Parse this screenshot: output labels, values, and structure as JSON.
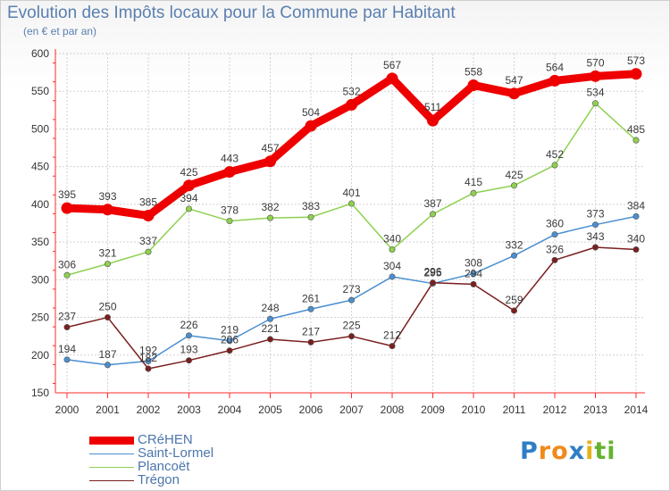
{
  "title": "Evolution des Impôts locaux pour la Commune par Habitant",
  "subtitle": "(en € et par an)",
  "logo": {
    "letters": [
      "P",
      "r",
      "o",
      "x",
      "i",
      "t",
      "i"
    ]
  },
  "colors": {
    "axis": "#ff2a2a",
    "grid": "#d2d2d2",
    "logo": [
      "#2f7ec5",
      "#f08a1c",
      "#f08a1c",
      "#2f7ec5",
      "#e6b21a",
      "#65b230",
      "#65b230"
    ]
  },
  "chart_data": {
    "type": "line",
    "title": "Evolution des Impôts locaux pour la Commune par Habitant",
    "subtitle": "(en € et par an)",
    "x": [
      2000,
      2001,
      2002,
      2003,
      2004,
      2005,
      2006,
      2007,
      2008,
      2009,
      2010,
      2011,
      2012,
      2013,
      2014
    ],
    "ylim": [
      150,
      600
    ],
    "yticks": [
      150,
      200,
      250,
      300,
      350,
      400,
      450,
      500,
      550,
      600
    ],
    "grid": true,
    "legend": "bottom-left",
    "series": [
      {
        "name": "CRéHEN",
        "color": "#ee0000",
        "emphasis": true,
        "values": [
          395,
          393,
          385,
          425,
          443,
          457,
          504,
          532,
          567,
          511,
          558,
          547,
          564,
          570,
          573
        ]
      },
      {
        "name": "Saint-Lormel",
        "color": "#4a8fd0",
        "emphasis": false,
        "values": [
          194,
          187,
          192,
          226,
          219,
          248,
          261,
          273,
          304,
          295,
          308,
          332,
          360,
          373,
          384
        ]
      },
      {
        "name": "Plancoët",
        "color": "#8ed14f",
        "emphasis": false,
        "values": [
          306,
          321,
          337,
          394,
          378,
          382,
          383,
          401,
          340,
          387,
          415,
          425,
          452,
          534,
          485
        ]
      },
      {
        "name": "Trégon",
        "color": "#7a1f1f",
        "emphasis": false,
        "values": [
          237,
          250,
          182,
          193,
          206,
          221,
          217,
          225,
          212,
          296,
          294,
          259,
          326,
          343,
          340
        ]
      }
    ]
  }
}
